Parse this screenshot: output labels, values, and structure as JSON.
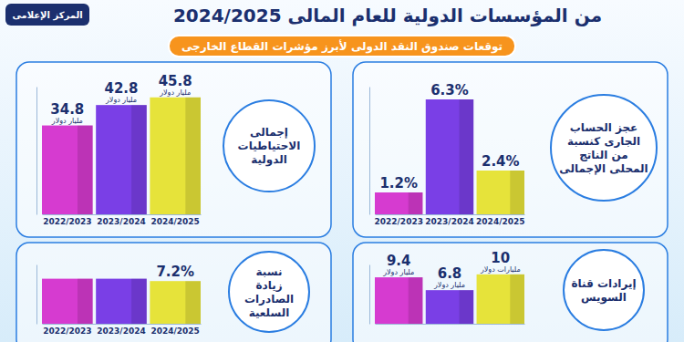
{
  "header": {
    "title": "من المؤسسات الدولية للعام المالى 2024/2025",
    "subtitle": "توقعات صندوق النقد الدولى لأبرز مؤشرات القطاع الخارجى",
    "logo": "المركز الإعلامى"
  },
  "chart_data": [
    {
      "type": "bar",
      "title": [
        "إجمالى",
        "الاحتياطيات",
        "الدولية"
      ],
      "categories": [
        "2022/2023",
        "2023/2024",
        "2024/2025"
      ],
      "values": [
        34.8,
        42.8,
        45.8
      ],
      "unit_labels": [
        "مليار دولار",
        "مليار دولار",
        "مليار دولار"
      ],
      "colors": [
        "#d63bd0",
        "#7a3fe6",
        "#e6e33a"
      ],
      "ylim": [
        0,
        50
      ],
      "yticks": [],
      "data_labels": true,
      "tick_labels": "x",
      "grid": false
    },
    {
      "type": "bar",
      "title": [
        "عجز الحساب",
        "الجارى كنسبة",
        "من الناتج",
        "المحلى الإجمالى"
      ],
      "categories": [
        "2022/2023",
        "2023/2024",
        "2024/2025"
      ],
      "values": [
        1.2,
        6.3,
        2.4
      ],
      "value_labels": [
        "1.2%",
        "6.3%",
        "2.4%"
      ],
      "colors": [
        "#d63bd0",
        "#7a3fe6",
        "#e6e33a"
      ],
      "ylim": [
        0,
        7
      ],
      "yticks": [],
      "data_labels": true,
      "tick_labels": "x",
      "grid": false
    },
    {
      "type": "bar",
      "title": [
        "نسبة",
        "زيادة",
        "الصادرات",
        "السلعية"
      ],
      "categories": [
        "2022/2023",
        "2023/2024",
        "2024/2025"
      ],
      "values": [
        7.6,
        7.6,
        7.2
      ],
      "value_labels": [
        null,
        null,
        "7.2%"
      ],
      "colors": [
        "#d63bd0",
        "#7a3fe6",
        "#e6e33a"
      ],
      "ylim": [
        0,
        10
      ],
      "yticks": [],
      "data_labels": true,
      "tick_labels": "x",
      "grid": false
    },
    {
      "type": "bar",
      "title": [
        "إيرادات قناة",
        "السويس"
      ],
      "categories": [
        null,
        null,
        null
      ],
      "values": [
        9.4,
        6.8,
        10
      ],
      "unit_labels": [
        "مليار دولار",
        "مليار دولار",
        "مليارات دولار"
      ],
      "colors": [
        "#d63bd0",
        "#7a3fe6",
        "#e6e33a"
      ],
      "ylim": [
        0,
        12
      ],
      "yticks": [],
      "data_labels": true,
      "tick_labels": false,
      "grid": false
    }
  ]
}
